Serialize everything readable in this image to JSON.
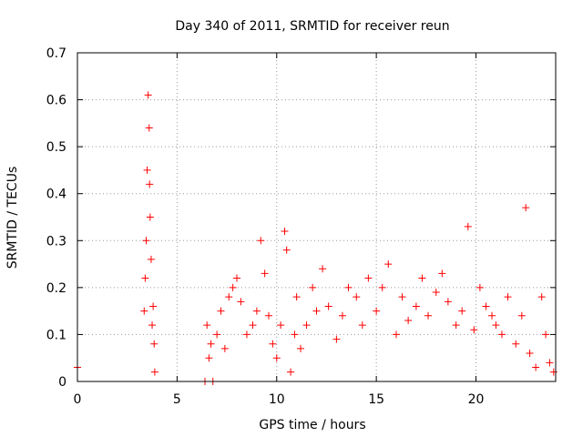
{
  "chart_data": {
    "type": "scatter",
    "title": "Day 340 of 2011, SRMTID for receiver reun",
    "xlabel": "GPS time / hours",
    "ylabel": "SRMTID / TECUs",
    "xlim": [
      0,
      24
    ],
    "ylim": [
      0,
      0.7
    ],
    "xticks": [
      0,
      5,
      10,
      15,
      20
    ],
    "xtick_labels": [
      "0",
      "5",
      "10",
      "15",
      "20"
    ],
    "yticks": [
      0,
      0.1,
      0.2,
      0.3,
      0.4,
      0.5,
      0.6,
      0.7
    ],
    "ytick_labels": [
      "0",
      "0.1",
      "0.2",
      "0.3",
      "0.4",
      "0.5",
      "0.6",
      "0.7"
    ],
    "grid": true,
    "marker": "+",
    "marker_color": "#ff0000",
    "series": [
      {
        "x": [
          0.0,
          3.35,
          3.4,
          3.45,
          3.5,
          3.55,
          3.6,
          3.62,
          3.65,
          3.7,
          3.75,
          3.8,
          3.85,
          3.88,
          6.4,
          6.5,
          6.6,
          6.7,
          6.8,
          7.0,
          7.2,
          7.4,
          7.6,
          7.8,
          8.0,
          8.2,
          8.5,
          8.8,
          9.0,
          9.2,
          9.4,
          9.6,
          9.8,
          10.0,
          10.2,
          10.4,
          10.5,
          10.7,
          10.9,
          11.0,
          11.2,
          11.5,
          11.8,
          12.0,
          12.3,
          12.6,
          13.0,
          13.3,
          13.6,
          14.0,
          14.3,
          14.6,
          15.0,
          15.3,
          15.6,
          16.0,
          16.3,
          16.6,
          17.0,
          17.3,
          17.6,
          18.0,
          18.3,
          18.6,
          19.0,
          19.3,
          19.6,
          19.9,
          20.2,
          20.5,
          20.8,
          21.0,
          21.3,
          21.6,
          22.0,
          22.3,
          22.5,
          22.7,
          23.0,
          23.3,
          23.5,
          23.7,
          23.9
        ],
        "y": [
          0.03,
          0.15,
          0.22,
          0.3,
          0.45,
          0.61,
          0.54,
          0.42,
          0.35,
          0.26,
          0.12,
          0.16,
          0.08,
          0.02,
          0.0,
          0.12,
          0.05,
          0.08,
          0.0,
          0.1,
          0.15,
          0.07,
          0.18,
          0.2,
          0.22,
          0.17,
          0.1,
          0.12,
          0.15,
          0.3,
          0.23,
          0.14,
          0.08,
          0.05,
          0.12,
          0.32,
          0.28,
          0.02,
          0.1,
          0.18,
          0.07,
          0.12,
          0.2,
          0.15,
          0.24,
          0.16,
          0.09,
          0.14,
          0.2,
          0.18,
          0.12,
          0.22,
          0.15,
          0.2,
          0.25,
          0.1,
          0.18,
          0.13,
          0.16,
          0.22,
          0.14,
          0.19,
          0.23,
          0.17,
          0.12,
          0.15,
          0.33,
          0.11,
          0.2,
          0.16,
          0.14,
          0.12,
          0.1,
          0.18,
          0.08,
          0.14,
          0.37,
          0.06,
          0.03,
          0.18,
          0.1,
          0.04,
          0.02
        ]
      }
    ]
  }
}
